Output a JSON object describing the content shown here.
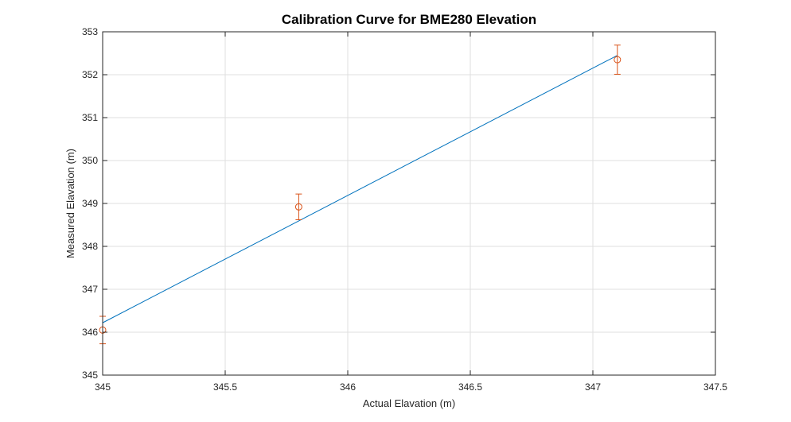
{
  "chart_data": {
    "type": "line",
    "title": "Calibration Curve for BME280 Elevation",
    "xlabel": "Actual Elavation (m)",
    "ylabel": "Measured Elavation (m)",
    "xlim": [
      345,
      347.5
    ],
    "ylim": [
      345,
      353
    ],
    "xticks": [
      345,
      345.5,
      346,
      346.5,
      347,
      347.5
    ],
    "yticks": [
      345,
      346,
      347,
      348,
      349,
      350,
      351,
      352,
      353
    ],
    "xtick_labels": [
      "345",
      "345.5",
      "346",
      "346.5",
      "347",
      "347.5"
    ],
    "ytick_labels": [
      "345",
      "346",
      "347",
      "348",
      "349",
      "350",
      "351",
      "352",
      "353"
    ],
    "grid": true,
    "series": [
      {
        "kind": "line",
        "color": "#0072BD",
        "x": [
          345,
          347.1
        ],
        "y": [
          346.22,
          352.45
        ]
      },
      {
        "kind": "errorbar",
        "marker": "circle",
        "color": "#D95319",
        "x": [
          345,
          345.8,
          347.1
        ],
        "y": [
          346.05,
          348.92,
          352.35
        ],
        "err": [
          0.32,
          0.3,
          0.34
        ]
      }
    ]
  }
}
